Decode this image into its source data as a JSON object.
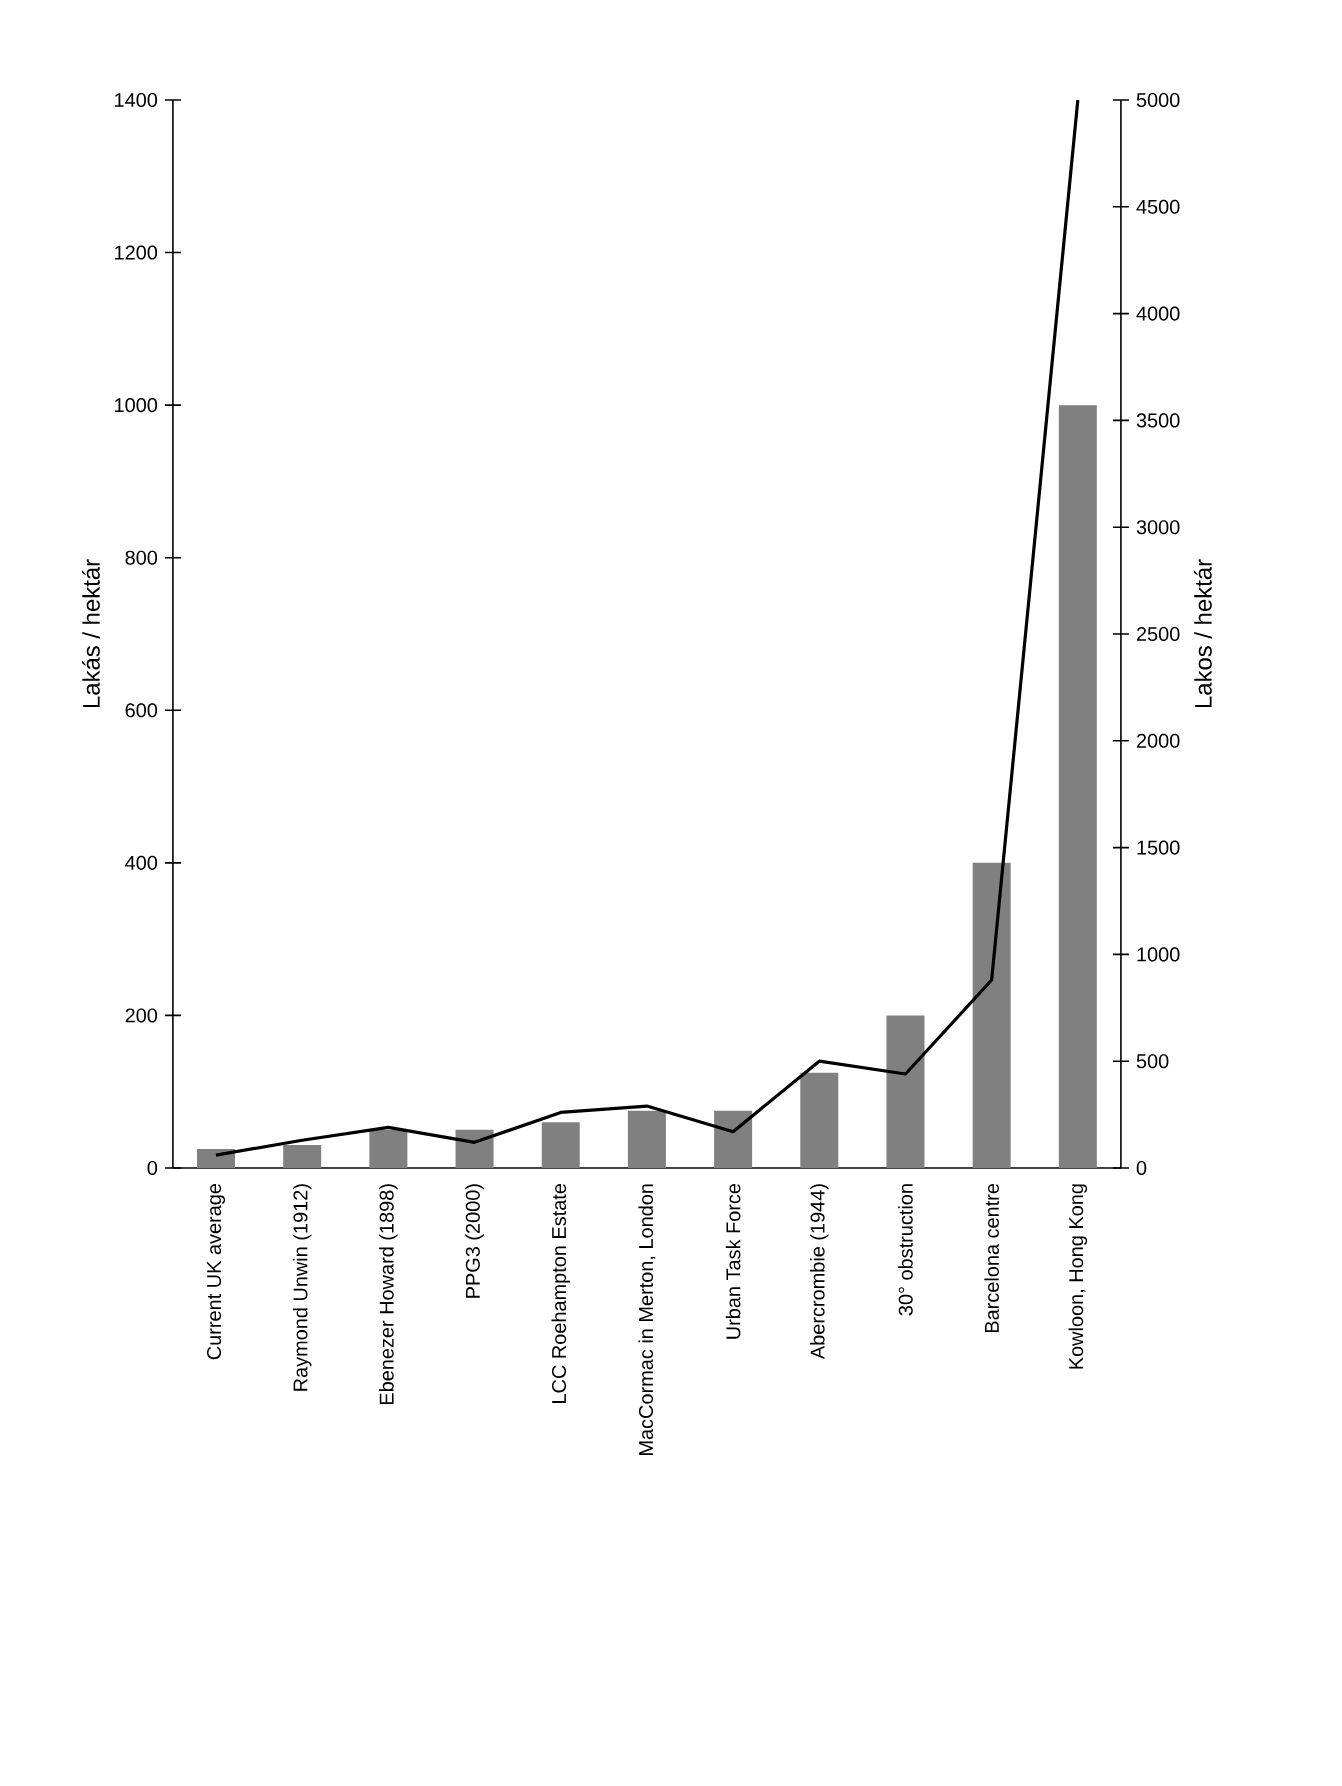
{
  "chart_data": {
    "type": "bar",
    "categories": [
      "Current UK average",
      "Raymond Unwin (1912)",
      "Ebenezer Howard (1898)",
      "PPG3 (2000)",
      "LCC Roehampton Estate",
      "MacCormac in Merton, London",
      "Urban Task Force",
      "Abercrombie (1944)",
      "30° obstruction",
      "Barcelona centre",
      "Kowloon, Hong Kong"
    ],
    "series": [
      {
        "color": "#808080",
        "values": [
          25,
          30,
          50,
          50,
          60,
          75,
          75,
          125,
          200,
          400,
          1000
        ]
      },
      {
        "type": "line",
        "axis": "y2",
        "color": "#000000",
        "values": [
          60,
          130,
          190,
          120,
          260,
          290,
          170,
          500,
          440,
          880,
          5000
        ]
      }
    ],
    "ylabel": "Lakás / hektár",
    "y2label": "Lakos / hektár",
    "ylim": [
      0,
      1400
    ],
    "yticks": [
      0,
      200,
      400,
      600,
      800,
      1000,
      1200,
      1400
    ],
    "y2lim": [
      0,
      5000
    ],
    "y2ticks": [
      0,
      500,
      1000,
      1500,
      2000,
      2500,
      3000,
      3500,
      4000,
      4500,
      5000
    ]
  }
}
